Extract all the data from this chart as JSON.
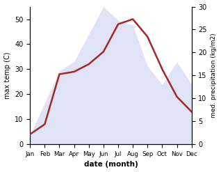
{
  "months": [
    "Jan",
    "Feb",
    "Mar",
    "Apr",
    "May",
    "Jun",
    "Jul",
    "Aug",
    "Sep",
    "Oct",
    "Nov",
    "Dec"
  ],
  "temperature": [
    4,
    8,
    28,
    29,
    32,
    37,
    48,
    50,
    43,
    30,
    19,
    13
  ],
  "precipitation": [
    2,
    9,
    16,
    18,
    24,
    30,
    27,
    26,
    17,
    13,
    18,
    13
  ],
  "temp_ylim": [
    0,
    55
  ],
  "precip_ylim": [
    0,
    30
  ],
  "temp_color": "#a02828",
  "precip_fill_color": "#c8ccee",
  "xlabel": "date (month)",
  "ylabel_left": "max temp (C)",
  "ylabel_right": "med. precipitation (kg/m2)",
  "temp_yticks": [
    0,
    10,
    20,
    30,
    40,
    50
  ],
  "precip_yticks": [
    0,
    5,
    10,
    15,
    20,
    25,
    30
  ],
  "bg_color": "#ffffff",
  "line_width": 1.8
}
